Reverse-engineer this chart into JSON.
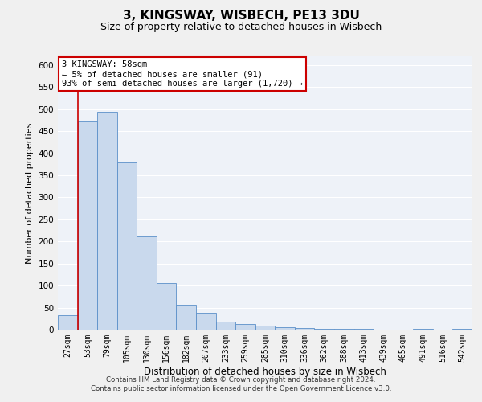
{
  "title": "3, KINGSWAY, WISBECH, PE13 3DU",
  "subtitle": "Size of property relative to detached houses in Wisbech",
  "xlabel": "Distribution of detached houses by size in Wisbech",
  "ylabel": "Number of detached properties",
  "bar_labels": [
    "27sqm",
    "53sqm",
    "79sqm",
    "105sqm",
    "130sqm",
    "156sqm",
    "182sqm",
    "207sqm",
    "233sqm",
    "259sqm",
    "285sqm",
    "310sqm",
    "336sqm",
    "362sqm",
    "388sqm",
    "413sqm",
    "439sqm",
    "465sqm",
    "491sqm",
    "516sqm",
    "542sqm"
  ],
  "bar_values": [
    33,
    473,
    495,
    380,
    211,
    105,
    56,
    38,
    19,
    12,
    10,
    5,
    3,
    2,
    1,
    1,
    0,
    0,
    1,
    0,
    1
  ],
  "bar_color": "#c9d9ed",
  "bar_edge_color": "#5b8fc9",
  "annotation_line1": "3 KINGSWAY: 58sqm",
  "annotation_line2": "← 5% of detached houses are smaller (91)",
  "annotation_line3": "93% of semi-detached houses are larger (1,720) →",
  "annotation_box_color": "#ffffff",
  "annotation_box_edge_color": "#cc0000",
  "ylim": [
    0,
    620
  ],
  "yticks": [
    0,
    50,
    100,
    150,
    200,
    250,
    300,
    350,
    400,
    450,
    500,
    550,
    600
  ],
  "footer1": "Contains HM Land Registry data © Crown copyright and database right 2024.",
  "footer2": "Contains public sector information licensed under the Open Government Licence v3.0.",
  "bg_color": "#eef2f8",
  "grid_color": "#ffffff",
  "title_fontsize": 11,
  "subtitle_fontsize": 9,
  "tick_fontsize": 7
}
